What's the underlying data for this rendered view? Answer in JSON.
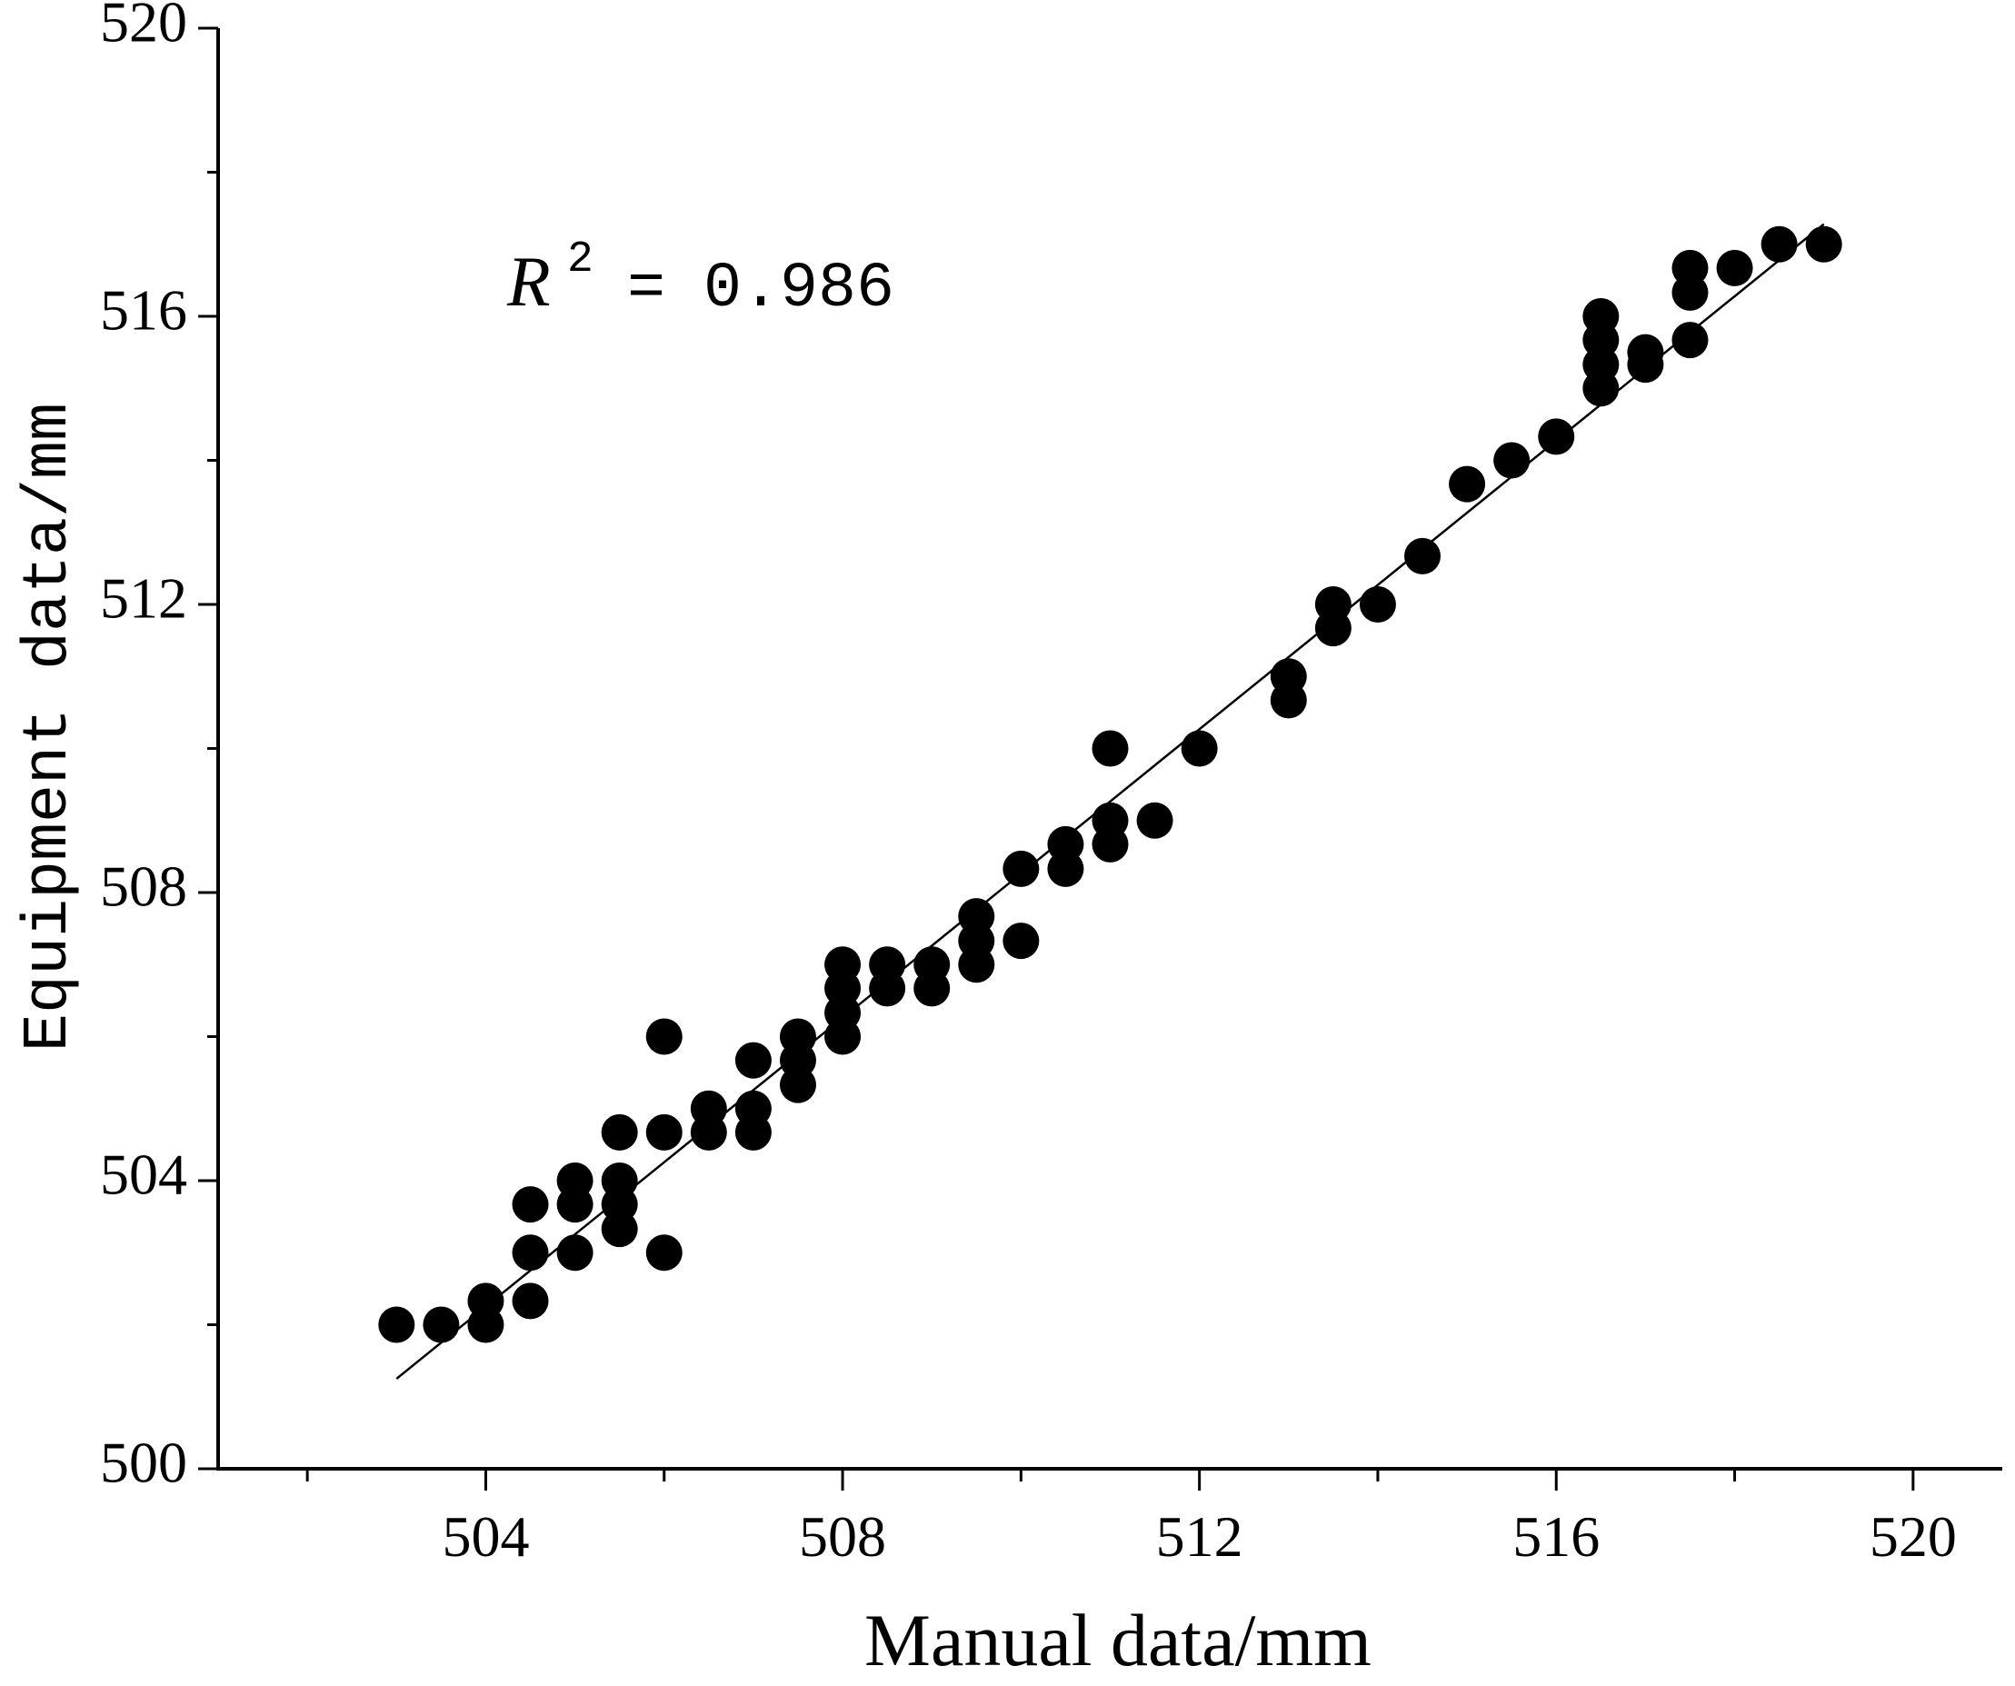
{
  "chart_data": {
    "type": "scatter",
    "xlabel": "Manual data/mm",
    "ylabel": "Equipment data/mm",
    "xlim": [
      501,
      521
    ],
    "ylim": [
      500,
      520
    ],
    "x_ticks": [
      504,
      508,
      512,
      516,
      520
    ],
    "x_minor_ticks": [
      502,
      506,
      510,
      514,
      518
    ],
    "y_ticks": [
      500,
      504,
      508,
      512,
      516,
      520
    ],
    "y_minor_ticks": [
      502,
      506,
      510,
      514,
      518
    ],
    "grid": false,
    "annotation": {
      "r": "R",
      "sup": "2",
      "value": "= 0.986"
    },
    "fit_line": {
      "x": [
        503,
        519
      ],
      "y": [
        501.25,
        517.28
      ]
    },
    "series": [
      {
        "x": [
          503,
          503.5,
          504,
          504,
          504.5,
          504.5,
          504.5,
          505,
          505,
          505,
          505.5,
          505.5,
          505.5,
          505.5,
          506,
          506,
          506,
          506.5,
          506.5,
          507,
          507,
          507,
          507.5,
          507.5,
          507.5,
          508,
          508,
          508,
          508,
          508.5,
          508.5,
          509,
          509,
          509.5,
          509.5,
          509.5,
          510,
          510,
          510.5,
          510.5,
          511,
          511,
          511,
          511.5,
          512,
          513,
          513,
          513.5,
          513.5,
          514,
          514.5,
          515,
          515.5,
          516,
          516.5,
          516.5,
          516.5,
          516.5,
          517,
          517,
          517.5,
          517.5,
          517.5,
          518,
          518.5,
          519
        ],
        "y": [
          502,
          502,
          502,
          502.33,
          502.33,
          503,
          503.67,
          503,
          503.67,
          504,
          503.33,
          503.67,
          504,
          504.67,
          503,
          504.67,
          506,
          504.67,
          505,
          504.67,
          505,
          505.67,
          505.33,
          505.67,
          506,
          506,
          506.33,
          506.67,
          507,
          506.67,
          507,
          506.67,
          507,
          507,
          507.33,
          507.67,
          507.33,
          508.33,
          508.33,
          508.67,
          508.67,
          509,
          510,
          509,
          510,
          510.67,
          511,
          511.67,
          512,
          512,
          512.67,
          513.67,
          514,
          514.33,
          515,
          515.33,
          515.67,
          516,
          515.33,
          515.5,
          515.67,
          516.33,
          516.67,
          516.67,
          517,
          517
        ]
      }
    ],
    "colors": {
      "marker": "#000000",
      "line": "#000000",
      "axis": "#000000"
    }
  }
}
